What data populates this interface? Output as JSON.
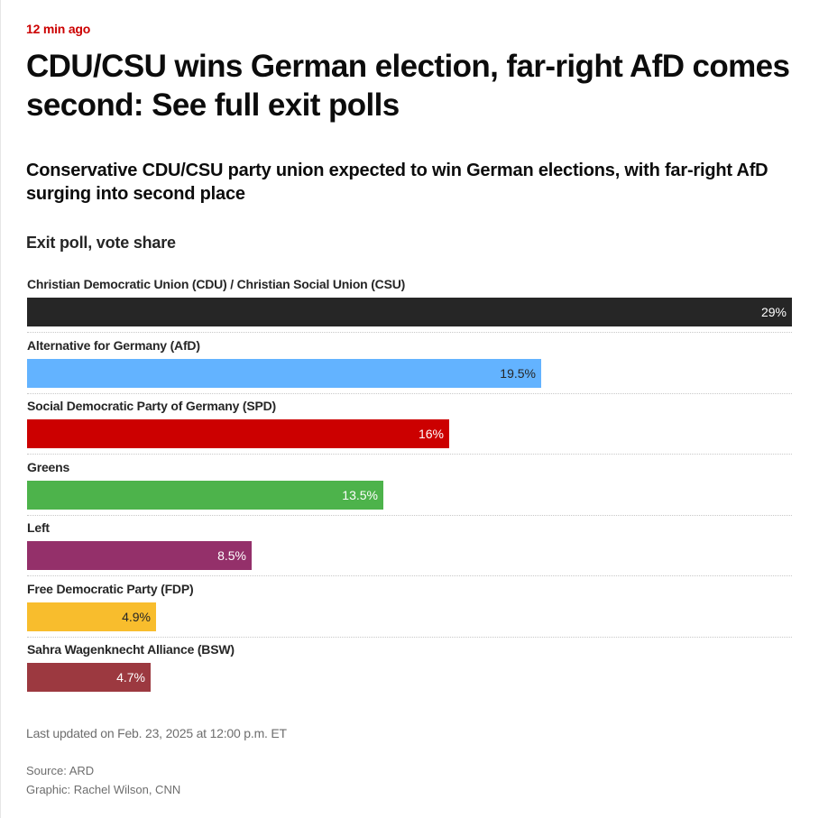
{
  "article": {
    "timestamp": "12 min ago",
    "headline": "CDU/CSU wins German election, far-right AfD comes second: See full exit polls"
  },
  "chart_data": {
    "type": "bar",
    "orientation": "horizontal",
    "title": "Conservative CDU/CSU party union expected to win German elections, with far-right AfD surging into second place",
    "subtitle": "Exit poll, vote share",
    "categories": [
      "Christian Democratic Union (CDU) / Christian Social Union (CSU)",
      "Alternative for Germany (AfD)",
      "Social Democratic Party of Germany (SPD)",
      "Greens",
      "Left",
      "Free Democratic Party (FDP)",
      "Sahra Wagenknecht Alliance (BSW)"
    ],
    "values": [
      29,
      19.5,
      16,
      13.5,
      8.5,
      4.9,
      4.7
    ],
    "value_labels": [
      "29%",
      "19.5%",
      "16%",
      "13.5%",
      "8.5%",
      "4.9%",
      "4.7%"
    ],
    "colors": [
      "#262626",
      "#63b3ff",
      "#cc0000",
      "#4db34b",
      "#94306a",
      "#f8bd2d",
      "#9c3940"
    ],
    "label_colors": [
      "#ffffff",
      "#262626",
      "#ffffff",
      "#ffffff",
      "#ffffff",
      "#262626",
      "#ffffff"
    ],
    "xlim": [
      0,
      29
    ],
    "unit": "%"
  },
  "footer": {
    "updated": "Last updated on Feb. 23, 2025 at 12:00 p.m. ET",
    "source": "Source: ARD",
    "graphic": "Graphic: Rachel Wilson, CNN"
  }
}
